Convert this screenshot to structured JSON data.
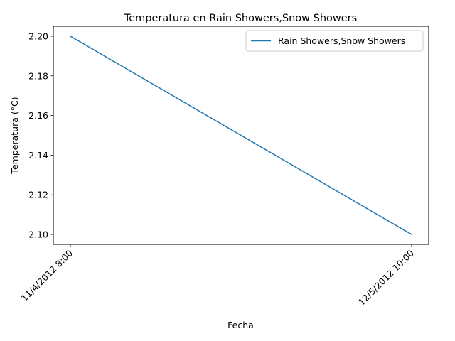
{
  "chart_data": {
    "type": "line",
    "title": "Temperatura en Rain Showers,Snow Showers",
    "xlabel": "Fecha",
    "ylabel": "Temperatura (°C)",
    "categories": [
      "11/4/2012 8:00",
      "12/5/2012 10:00"
    ],
    "series": [
      {
        "name": "Rain Showers,Snow Showers",
        "values": [
          2.2,
          2.1
        ],
        "color": "#1f77b4"
      }
    ],
    "ylim": [
      2.095,
      2.205
    ],
    "yticks": [
      2.1,
      2.12,
      2.14,
      2.16,
      2.18,
      2.2
    ],
    "ytick_labels": [
      "2.10",
      "2.12",
      "2.14",
      "2.16",
      "2.18",
      "2.20"
    ],
    "xtick_rotation": 45,
    "grid": false,
    "legend_position": "top-right"
  }
}
